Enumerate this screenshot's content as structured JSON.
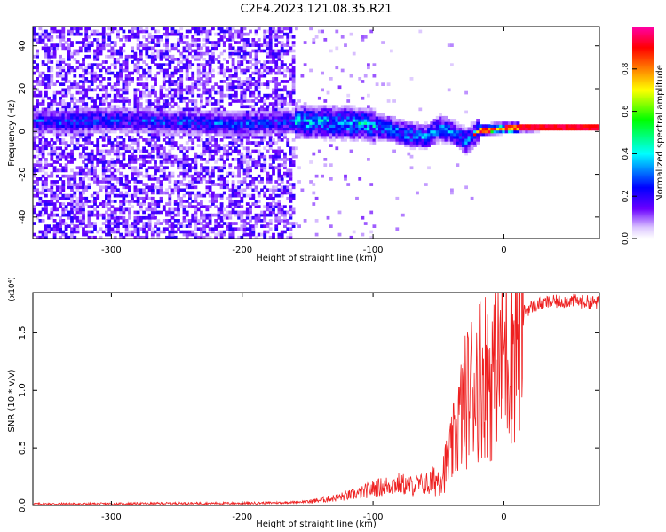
{
  "figure_title": "C2E4.2023.121.08.35.R21",
  "chart_data": [
    {
      "type": "heatmap",
      "title": "C2E4.2023.121.08.35.R21",
      "xlabel": "Height of straight line (km)",
      "ylabel": "Frequency (Hz)",
      "xlim": [
        -360,
        73
      ],
      "ylim": [
        -50,
        49
      ],
      "xticks": [
        -300,
        -200,
        -100,
        0
      ],
      "yticks": [
        -40,
        -20,
        0,
        20,
        40
      ],
      "x_tick_labels": [
        "-300",
        "-200",
        "-100",
        "0"
      ],
      "y_tick_labels": [
        "-40",
        "-20",
        "0",
        "20",
        "40"
      ],
      "colorbar": {
        "label": "Normalized spectral amplitude",
        "range": [
          0,
          1
        ],
        "ticks": [
          0.0,
          0.2,
          0.4,
          0.6,
          0.8
        ],
        "tick_labels": [
          "0.0",
          "0.2",
          "0.4",
          "0.6",
          "0.8"
        ],
        "colormap": [
          "#ffffff",
          "#6a00ff",
          "#0000ff",
          "#00ffff",
          "#00ff00",
          "#ffff00",
          "#ff8000",
          "#ff0000",
          "#ff00aa"
        ]
      },
      "ridge_center_hz": [
        [
          -340,
          4
        ],
        [
          -300,
          5
        ],
        [
          -260,
          4
        ],
        [
          -200,
          3
        ],
        [
          -170,
          4
        ],
        [
          -140,
          4
        ],
        [
          -110,
          3
        ],
        [
          -90,
          1
        ],
        [
          -75,
          -2
        ],
        [
          -60,
          -3
        ],
        [
          -50,
          1
        ],
        [
          -40,
          -1
        ],
        [
          -30,
          -5
        ],
        [
          -20,
          0
        ],
        [
          0,
          1
        ],
        [
          20,
          1
        ],
        [
          40,
          1.5
        ],
        [
          73,
          1.5
        ]
      ]
    },
    {
      "type": "line",
      "title": "",
      "xlabel": "Height of straight line (km)",
      "ylabel": "SNR (10 * v/v)",
      "y_multiplier": "(x10⁴)",
      "xlim": [
        -360,
        73
      ],
      "ylim": [
        0,
        1.85
      ],
      "xticks": [
        -300,
        -200,
        -100,
        0
      ],
      "yticks": [
        0.0,
        0.5,
        1.0,
        1.5
      ],
      "x_tick_labels": [
        "-300",
        "-200",
        "-100",
        "0"
      ],
      "y_tick_labels": [
        "0.0",
        "0.5",
        "1.0",
        "1.5"
      ],
      "line_color": "#ee2020",
      "series": [
        {
          "name": "SNR",
          "x": [
            -360,
            -300,
            -250,
            -200,
            -170,
            -150,
            -130,
            -110,
            -100,
            -90,
            -80,
            -70,
            -60,
            -50,
            -45,
            -40,
            -35,
            -30,
            -25,
            -20,
            -15,
            -10,
            -5,
            0,
            5,
            10,
            20,
            30,
            40,
            50,
            60,
            73
          ],
          "y": [
            0.01,
            0.01,
            0.015,
            0.015,
            0.02,
            0.03,
            0.06,
            0.1,
            0.14,
            0.16,
            0.18,
            0.16,
            0.18,
            0.25,
            0.35,
            0.5,
            0.75,
            0.95,
            1.1,
            1.2,
            1.25,
            1.2,
            1.3,
            1.4,
            1.55,
            1.65,
            1.72,
            1.76,
            1.77,
            1.78,
            1.77,
            1.76
          ]
        }
      ]
    }
  ]
}
